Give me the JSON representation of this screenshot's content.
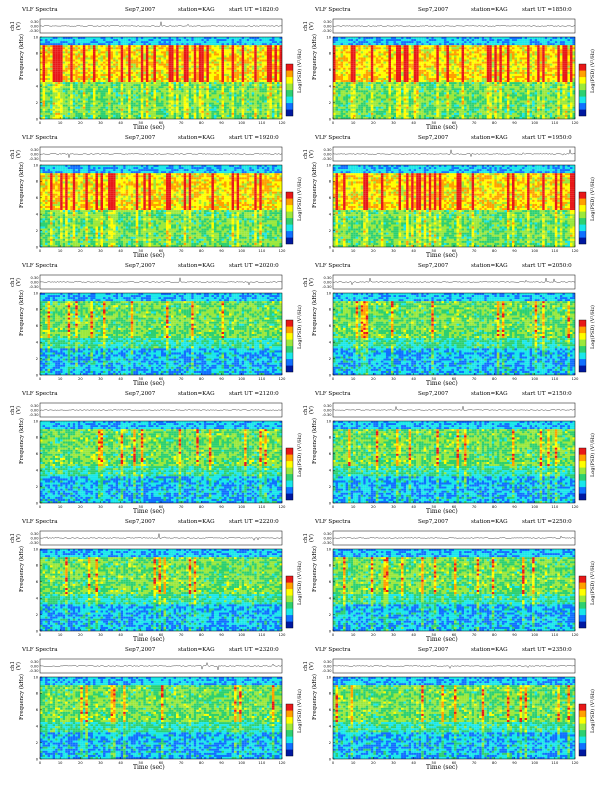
{
  "colors": {
    "spectrum": [
      "#0018a0",
      "#1070ff",
      "#19e7ea",
      "#2dd070",
      "#9be83c",
      "#ffff00",
      "#ffa000",
      "#e81818"
    ],
    "frame": "#000000"
  },
  "chart_data": [
    {
      "type": "heatmap",
      "title": "VLF Spectra",
      "date": "Sep7,2007",
      "station": "station=KAG",
      "ut": "start  UT  =1820:0",
      "ch_label": "ch1 (V)",
      "ylabel": "Frequency  (kHz)",
      "xlabel": "Time  (sec)",
      "colorbar_label": "Log(PSD) (V²/Hz)",
      "x_ticks": [
        "0",
        "10",
        "20",
        "30",
        "40",
        "50",
        "60",
        "70",
        "80",
        "90",
        "100",
        "110",
        "120"
      ],
      "y_ticks": [
        "0",
        "2",
        "4",
        "6",
        "8",
        "10"
      ],
      "ch_ticks": [
        "0.30",
        "0.00",
        "-0.30"
      ],
      "xlim": [
        0,
        120
      ],
      "ylim": [
        0,
        10
      ]
    },
    {
      "type": "heatmap",
      "title": "VLF Spectra",
      "date": "Sep7,2007",
      "station": "station=KAG",
      "ut": "start  UT  =1850:0",
      "ch_label": "ch1 (V)",
      "ylabel": "Frequency  (kHz)",
      "xlabel": "Time  (sec)",
      "colorbar_label": "Log(PSD) (V²/Hz)",
      "x_ticks": [
        "0",
        "10",
        "20",
        "30",
        "40",
        "50",
        "60",
        "70",
        "80",
        "90",
        "100",
        "110",
        "120"
      ],
      "y_ticks": [
        "0",
        "2",
        "4",
        "6",
        "8",
        "10"
      ],
      "ch_ticks": [
        "0.30",
        "0.00",
        "-0.30"
      ],
      "xlim": [
        0,
        120
      ],
      "ylim": [
        0,
        10
      ]
    },
    {
      "type": "heatmap",
      "title": "VLF Spectra",
      "date": "Sep7,2007",
      "station": "station=KAG",
      "ut": "start  UT  =1920:0",
      "ch_label": "ch1 (V)",
      "ylabel": "Frequency  (kHz)",
      "xlabel": "Time  (sec)",
      "colorbar_label": "Log(PSD) (V²/Hz)",
      "x_ticks": [
        "0",
        "10",
        "20",
        "30",
        "40",
        "50",
        "60",
        "70",
        "80",
        "90",
        "100",
        "110",
        "120"
      ],
      "y_ticks": [
        "0",
        "2",
        "4",
        "6",
        "8",
        "10"
      ],
      "ch_ticks": [
        "0.30",
        "0.00",
        "-0.30"
      ],
      "xlim": [
        0,
        120
      ],
      "ylim": [
        0,
        10
      ]
    },
    {
      "type": "heatmap",
      "title": "VLF Spectra",
      "date": "Sep7,2007",
      "station": "station=KAG",
      "ut": "start  UT  =1950:0",
      "ch_label": "ch1 (V)",
      "ylabel": "Frequency  (kHz)",
      "xlabel": "Time  (sec)",
      "colorbar_label": "Log(PSD) (V²/Hz)",
      "x_ticks": [
        "0",
        "10",
        "20",
        "30",
        "40",
        "50",
        "60",
        "70",
        "80",
        "90",
        "100",
        "110",
        "120"
      ],
      "y_ticks": [
        "0",
        "2",
        "4",
        "6",
        "8",
        "10"
      ],
      "ch_ticks": [
        "0.30",
        "0.00",
        "-0.30"
      ],
      "xlim": [
        0,
        120
      ],
      "ylim": [
        0,
        10
      ]
    },
    {
      "type": "heatmap",
      "title": "VLF Spectra",
      "date": "Sep7,2007",
      "station": "station=KAG",
      "ut": "start  UT  =2020:0",
      "ch_label": "ch1 (V)",
      "ylabel": "Frequency  (kHz)",
      "xlabel": "Time  (sec)",
      "colorbar_label": "Log(PSD) (V²/Hz)",
      "x_ticks": [
        "0",
        "10",
        "20",
        "30",
        "40",
        "50",
        "60",
        "70",
        "80",
        "90",
        "100",
        "110",
        "120"
      ],
      "y_ticks": [
        "0",
        "2",
        "4",
        "6",
        "8",
        "10"
      ],
      "ch_ticks": [
        "0.30",
        "0.00",
        "-0.30"
      ],
      "xlim": [
        0,
        120
      ],
      "ylim": [
        0,
        10
      ]
    },
    {
      "type": "heatmap",
      "title": "VLF Spectra",
      "date": "Sep7,2007",
      "station": "station=KAG",
      "ut": "start  UT  =2050:0",
      "ch_label": "ch1 (V)",
      "ylabel": "Frequency  (kHz)",
      "xlabel": "Time  (sec)",
      "colorbar_label": "Log(PSD) (V²/Hz)",
      "x_ticks": [
        "0",
        "10",
        "20",
        "30",
        "40",
        "50",
        "60",
        "70",
        "80",
        "90",
        "100",
        "110",
        "120"
      ],
      "y_ticks": [
        "0",
        "2",
        "4",
        "6",
        "8",
        "10"
      ],
      "ch_ticks": [
        "0.30",
        "0.00",
        "-0.30"
      ],
      "xlim": [
        0,
        120
      ],
      "ylim": [
        0,
        10
      ]
    },
    {
      "type": "heatmap",
      "title": "VLF Spectra",
      "date": "Sep7,2007",
      "station": "station=KAG",
      "ut": "start  UT  =2120:0",
      "ch_label": "ch1 (V)",
      "ylabel": "Frequency  (kHz)",
      "xlabel": "Time  (sec)",
      "colorbar_label": "Log(PSD) (V²/Hz)",
      "x_ticks": [
        "0",
        "10",
        "20",
        "30",
        "40",
        "50",
        "60",
        "70",
        "80",
        "90",
        "100",
        "110",
        "120"
      ],
      "y_ticks": [
        "0",
        "2",
        "4",
        "6",
        "8",
        "10"
      ],
      "ch_ticks": [
        "0.30",
        "0.00",
        "-0.30"
      ],
      "xlim": [
        0,
        120
      ],
      "ylim": [
        0,
        10
      ]
    },
    {
      "type": "heatmap",
      "title": "VLF Spectra",
      "date": "Sep7,2007",
      "station": "station=KAG",
      "ut": "start  UT  =2150:0",
      "ch_label": "ch1 (V)",
      "ylabel": "Frequency  (kHz)",
      "xlabel": "Time  (sec)",
      "colorbar_label": "Log(PSD) (V²/Hz)",
      "x_ticks": [
        "0",
        "10",
        "20",
        "30",
        "40",
        "50",
        "60",
        "70",
        "80",
        "90",
        "100",
        "110",
        "120"
      ],
      "y_ticks": [
        "0",
        "2",
        "4",
        "6",
        "8",
        "10"
      ],
      "ch_ticks": [
        "0.30",
        "0.00",
        "-0.30"
      ],
      "xlim": [
        0,
        120
      ],
      "ylim": [
        0,
        10
      ]
    },
    {
      "type": "heatmap",
      "title": "VLF Spectra",
      "date": "Sep7,2007",
      "station": "station=KAG",
      "ut": "start  UT  =2220:0",
      "ch_label": "ch1 (V)",
      "ylabel": "Frequency  (kHz)",
      "xlabel": "Time  (sec)",
      "colorbar_label": "Log(PSD) (V²/Hz)",
      "x_ticks": [
        "0",
        "10",
        "20",
        "30",
        "40",
        "50",
        "60",
        "70",
        "80",
        "90",
        "100",
        "110",
        "120"
      ],
      "y_ticks": [
        "0",
        "2",
        "4",
        "6",
        "8",
        "10"
      ],
      "ch_ticks": [
        "0.30",
        "0.00",
        "-0.30"
      ],
      "xlim": [
        0,
        120
      ],
      "ylim": [
        0,
        10
      ]
    },
    {
      "type": "heatmap",
      "title": "VLF Spectra",
      "date": "Sep7,2007",
      "station": "station=KAG",
      "ut": "start  UT  =2250:0",
      "ch_label": "ch1 (V)",
      "ylabel": "Frequency  (kHz)",
      "xlabel": "Time  (sec)",
      "colorbar_label": "Log(PSD) (V²/Hz)",
      "x_ticks": [
        "0",
        "10",
        "20",
        "30",
        "40",
        "50",
        "60",
        "70",
        "80",
        "90",
        "100",
        "110",
        "120"
      ],
      "y_ticks": [
        "0",
        "2",
        "4",
        "6",
        "8",
        "10"
      ],
      "ch_ticks": [
        "0.30",
        "0.00",
        "-0.30"
      ],
      "xlim": [
        0,
        120
      ],
      "ylim": [
        0,
        10
      ]
    },
    {
      "type": "heatmap",
      "title": "VLF Spectra",
      "date": "Sep7,2007",
      "station": "station=KAG",
      "ut": "start  UT  =2320:0",
      "ch_label": "ch1 (V)",
      "ylabel": "Frequency  (kHz)",
      "xlabel": "Time  (sec)",
      "colorbar_label": "Log(PSD) (V²/Hz)",
      "x_ticks": [
        "0",
        "10",
        "20",
        "30",
        "40",
        "50",
        "60",
        "70",
        "80",
        "90",
        "100",
        "110",
        "120"
      ],
      "y_ticks": [
        "0",
        "2",
        "4",
        "6",
        "8",
        "10"
      ],
      "ch_ticks": [
        "0.30",
        "0.00",
        "-0.30"
      ],
      "xlim": [
        0,
        120
      ],
      "ylim": [
        0,
        10
      ]
    },
    {
      "type": "heatmap",
      "title": "VLF Spectra",
      "date": "Sep7,2007",
      "station": "station=KAG",
      "ut": "start  UT  =2350:0",
      "ch_label": "ch1 (V)",
      "ylabel": "Frequency  (kHz)",
      "xlabel": "Time  (sec)",
      "colorbar_label": "Log(PSD) (V²/Hz)",
      "x_ticks": [
        "0",
        "10",
        "20",
        "30",
        "40",
        "50",
        "60",
        "70",
        "80",
        "90",
        "100",
        "110",
        "120"
      ],
      "y_ticks": [
        "0",
        "2",
        "4",
        "6",
        "8",
        "10"
      ],
      "ch_ticks": [
        "0.30",
        "0.00",
        "-0.30"
      ],
      "xlim": [
        0,
        120
      ],
      "ylim": [
        0,
        10
      ]
    }
  ]
}
